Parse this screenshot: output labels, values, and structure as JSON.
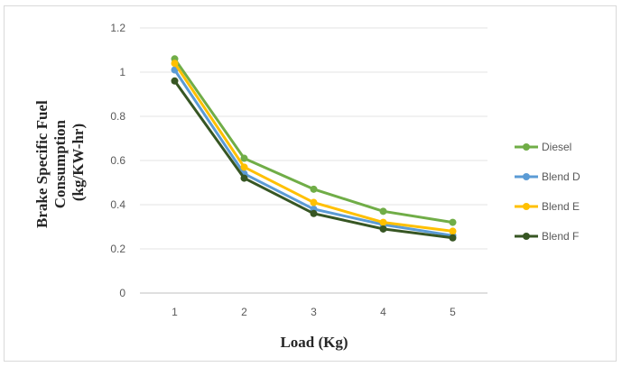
{
  "chart_data": {
    "type": "line",
    "xlabel": "Load (Kg)",
    "ylabel_lines": [
      "Brake Specific Fuel",
      "Consumption",
      "(kg/KW-hr)"
    ],
    "categories": [
      "1",
      "2",
      "3",
      "4",
      "5"
    ],
    "ylim": [
      0,
      1.2
    ],
    "y_ticks": [
      "0",
      "0.2",
      "0.4",
      "0.6",
      "0.8",
      "1",
      "1.2"
    ],
    "grid": true,
    "legend_position": "right",
    "series": [
      {
        "name": "Diesel",
        "color": "#70ad47",
        "values": [
          1.06,
          0.61,
          0.47,
          0.37,
          0.32
        ]
      },
      {
        "name": "Blend D",
        "color": "#5b9bd5",
        "values": [
          1.01,
          0.54,
          0.38,
          0.31,
          0.26
        ]
      },
      {
        "name": "Blend E",
        "color": "#ffc000",
        "values": [
          1.04,
          0.57,
          0.41,
          0.32,
          0.28
        ]
      },
      {
        "name": "Blend F",
        "color": "#375623",
        "values": [
          0.96,
          0.52,
          0.36,
          0.29,
          0.25
        ]
      }
    ]
  }
}
